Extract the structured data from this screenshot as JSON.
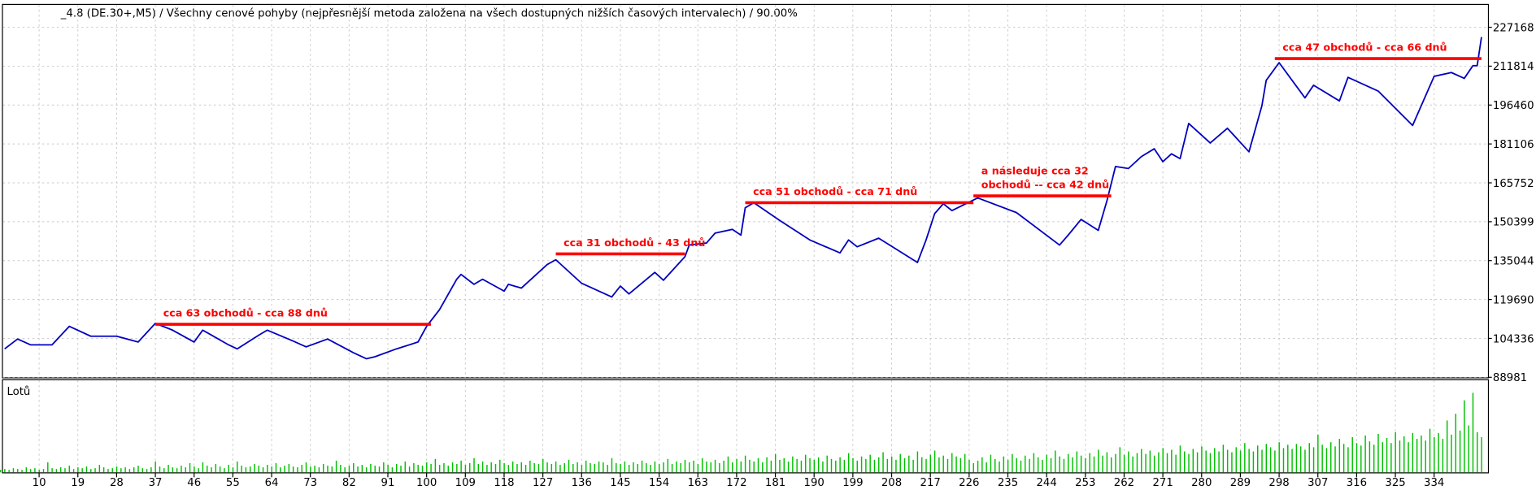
{
  "chart_data": [
    {
      "type": "line",
      "title": "_4.8 (DE.30+,M5) / Všechny cenové pohyby (nejpřesnější metoda založena na všech dostupných nižších časových intervalech) / 90.00%",
      "x": [
        2,
        5,
        8,
        13,
        17,
        22,
        28,
        33,
        37,
        41,
        46,
        48,
        54,
        56,
        61,
        63,
        69,
        72,
        77,
        83,
        86,
        88,
        93,
        98,
        100,
        103,
        107,
        108,
        111,
        113,
        118,
        119,
        122,
        128,
        130,
        136,
        143,
        145,
        147,
        153,
        155,
        160,
        161,
        165,
        167,
        171,
        173,
        174,
        176,
        182,
        189,
        196,
        198,
        200,
        205,
        214,
        216,
        218,
        220,
        222,
        228,
        237,
        247,
        249,
        252,
        256,
        258,
        260,
        263,
        266,
        269,
        271,
        273,
        275,
        277,
        282,
        286,
        291,
        294,
        295,
        298,
        304,
        306,
        312,
        314,
        321,
        329,
        334,
        338,
        341,
        343,
        344,
        345
      ],
      "values": [
        100200,
        104100,
        101800,
        101800,
        109100,
        105200,
        105200,
        102900,
        110300,
        107600,
        102900,
        107600,
        101800,
        100200,
        105600,
        107600,
        103300,
        101000,
        104100,
        98700,
        96300,
        97100,
        100200,
        102900,
        109100,
        115700,
        127700,
        129600,
        125700,
        127700,
        123000,
        125700,
        124200,
        133500,
        135400,
        126100,
        120700,
        125000,
        121900,
        130400,
        127300,
        136600,
        141200,
        142000,
        145900,
        147400,
        145100,
        155900,
        157900,
        150900,
        143200,
        138100,
        143200,
        140500,
        143900,
        134300,
        143200,
        153600,
        157500,
        154800,
        159800,
        154000,
        141200,
        145100,
        151300,
        147000,
        158600,
        172200,
        171400,
        176100,
        179200,
        174100,
        177200,
        175300,
        189200,
        181500,
        187300,
        178000,
        196200,
        206200,
        213200,
        199300,
        204300,
        198100,
        207400,
        202000,
        188400,
        207800,
        209300,
        207000,
        212000,
        212000,
        223300
      ],
      "color": "#0000c0",
      "xlim": [
        1.6,
        346.5
      ],
      "ylim": [
        88981,
        236000
      ],
      "yticks": [
        88981,
        104336,
        119690,
        135044,
        150399,
        165752,
        181106,
        196460,
        211814,
        227168
      ],
      "grid": true,
      "annotation_color": "#ff0000",
      "annotations": [
        {
          "x": [
            37,
            101
          ],
          "value": 109900,
          "label": [
            "cca 63 obchodů - cca 88 dnů"
          ]
        },
        {
          "x": [
            130,
            160
          ],
          "value": 137700,
          "label": [
            "cca 31 obchodů - 43 dnů"
          ]
        },
        {
          "x": [
            174,
            227
          ],
          "value": 157900,
          "label": [
            "cca 51 obchodů - cca 71 dnů"
          ]
        },
        {
          "x": [
            227,
            259
          ],
          "value": 160600,
          "label": [
            "a následuje cca 32",
            "obchodů -- cca 42 dnů"
          ]
        },
        {
          "x": [
            297,
            345
          ],
          "value": 214800,
          "label": [
            "cca 47 obchodů - cca 66 dnů"
          ]
        }
      ]
    },
    {
      "type": "bar",
      "title": "Lotů",
      "x": [
        1,
        2,
        3,
        4,
        5,
        6,
        7,
        8,
        9,
        10,
        11,
        12,
        13,
        14,
        15,
        16,
        17,
        18,
        19,
        20,
        21,
        22,
        23,
        24,
        25,
        26,
        27,
        28,
        29,
        30,
        31,
        32,
        33,
        34,
        35,
        36,
        37,
        38,
        39,
        40,
        41,
        42,
        43,
        44,
        45,
        46,
        47,
        48,
        49,
        50,
        51,
        52,
        53,
        54,
        55,
        56,
        57,
        58,
        59,
        60,
        61,
        62,
        63,
        64,
        65,
        66,
        67,
        68,
        69,
        70,
        71,
        72,
        73,
        74,
        75,
        76,
        77,
        78,
        79,
        80,
        81,
        82,
        83,
        84,
        85,
        86,
        87,
        88,
        89,
        90,
        91,
        92,
        93,
        94,
        95,
        96,
        97,
        98,
        99,
        100,
        101,
        102,
        103,
        104,
        105,
        106,
        107,
        108,
        109,
        110,
        111,
        112,
        113,
        114,
        115,
        116,
        117,
        118,
        119,
        120,
        121,
        122,
        123,
        124,
        125,
        126,
        127,
        128,
        129,
        130,
        131,
        132,
        133,
        134,
        135,
        136,
        137,
        138,
        139,
        140,
        141,
        142,
        143,
        144,
        145,
        146,
        147,
        148,
        149,
        150,
        151,
        152,
        153,
        154,
        155,
        156,
        157,
        158,
        159,
        160,
        161,
        162,
        163,
        164,
        165,
        166,
        167,
        168,
        169,
        170,
        171,
        172,
        173,
        174,
        175,
        176,
        177,
        178,
        179,
        180,
        181,
        182,
        183,
        184,
        185,
        186,
        187,
        188,
        189,
        190,
        191,
        192,
        193,
        194,
        195,
        196,
        197,
        198,
        199,
        200,
        201,
        202,
        203,
        204,
        205,
        206,
        207,
        208,
        209,
        210,
        211,
        212,
        213,
        214,
        215,
        216,
        217,
        218,
        219,
        220,
        221,
        222,
        223,
        224,
        225,
        226,
        227,
        228,
        229,
        230,
        231,
        232,
        233,
        234,
        235,
        236,
        237,
        238,
        239,
        240,
        241,
        242,
        243,
        244,
        245,
        246,
        247,
        248,
        249,
        250,
        251,
        252,
        253,
        254,
        255,
        256,
        257,
        258,
        259,
        260,
        261,
        262,
        263,
        264,
        265,
        266,
        267,
        268,
        269,
        270,
        271,
        272,
        273,
        274,
        275,
        276,
        277,
        278,
        279,
        280,
        281,
        282,
        283,
        284,
        285,
        286,
        287,
        288,
        289,
        290,
        291,
        292,
        293,
        294,
        295,
        296,
        297,
        298,
        299,
        300,
        301,
        302,
        303,
        304,
        305,
        306,
        307,
        308,
        309,
        310,
        311,
        312,
        313,
        314,
        315,
        316,
        317,
        318,
        319,
        320,
        321,
        322,
        323,
        324,
        325,
        326,
        327,
        328,
        329,
        330,
        331,
        332,
        333,
        334,
        335,
        336,
        337,
        338,
        339,
        340,
        341,
        342,
        343,
        344,
        345
      ],
      "values": [
        0.03,
        0.04,
        0.03,
        0.05,
        0.04,
        0.03,
        0.06,
        0.04,
        0.05,
        0.03,
        0.04,
        0.12,
        0.05,
        0.04,
        0.06,
        0.05,
        0.08,
        0.04,
        0.06,
        0.05,
        0.07,
        0.04,
        0.05,
        0.09,
        0.06,
        0.04,
        0.05,
        0.07,
        0.05,
        0.06,
        0.04,
        0.06,
        0.08,
        0.05,
        0.04,
        0.06,
        0.13,
        0.07,
        0.05,
        0.09,
        0.06,
        0.05,
        0.08,
        0.06,
        0.11,
        0.07,
        0.05,
        0.12,
        0.08,
        0.06,
        0.1,
        0.07,
        0.05,
        0.09,
        0.06,
        0.13,
        0.08,
        0.06,
        0.07,
        0.1,
        0.08,
        0.06,
        0.09,
        0.07,
        0.11,
        0.06,
        0.08,
        0.1,
        0.07,
        0.06,
        0.09,
        0.12,
        0.07,
        0.08,
        0.06,
        0.1,
        0.08,
        0.07,
        0.14,
        0.09,
        0.06,
        0.08,
        0.11,
        0.07,
        0.09,
        0.06,
        0.1,
        0.08,
        0.07,
        0.12,
        0.09,
        0.06,
        0.1,
        0.08,
        0.13,
        0.07,
        0.11,
        0.09,
        0.08,
        0.12,
        0.1,
        0.16,
        0.09,
        0.11,
        0.08,
        0.12,
        0.1,
        0.14,
        0.09,
        0.11,
        0.17,
        0.1,
        0.13,
        0.09,
        0.12,
        0.1,
        0.15,
        0.11,
        0.09,
        0.13,
        0.1,
        0.12,
        0.09,
        0.14,
        0.11,
        0.1,
        0.16,
        0.12,
        0.1,
        0.13,
        0.09,
        0.11,
        0.15,
        0.1,
        0.12,
        0.09,
        0.14,
        0.11,
        0.1,
        0.13,
        0.12,
        0.09,
        0.17,
        0.11,
        0.1,
        0.13,
        0.09,
        0.12,
        0.1,
        0.14,
        0.11,
        0.09,
        0.13,
        0.1,
        0.12,
        0.16,
        0.1,
        0.13,
        0.11,
        0.15,
        0.12,
        0.14,
        0.1,
        0.17,
        0.13,
        0.12,
        0.15,
        0.11,
        0.14,
        0.19,
        0.12,
        0.16,
        0.13,
        0.2,
        0.15,
        0.13,
        0.17,
        0.12,
        0.18,
        0.14,
        0.22,
        0.15,
        0.17,
        0.13,
        0.19,
        0.16,
        0.14,
        0.21,
        0.17,
        0.15,
        0.18,
        0.13,
        0.2,
        0.16,
        0.14,
        0.18,
        0.15,
        0.23,
        0.17,
        0.14,
        0.19,
        0.16,
        0.21,
        0.15,
        0.18,
        0.24,
        0.16,
        0.19,
        0.15,
        0.22,
        0.17,
        0.2,
        0.15,
        0.25,
        0.18,
        0.16,
        0.21,
        0.26,
        0.18,
        0.2,
        0.16,
        0.23,
        0.19,
        0.17,
        0.22,
        0.15,
        0.11,
        0.14,
        0.18,
        0.12,
        0.21,
        0.16,
        0.13,
        0.19,
        0.15,
        0.22,
        0.17,
        0.14,
        0.2,
        0.16,
        0.23,
        0.18,
        0.15,
        0.21,
        0.17,
        0.26,
        0.19,
        0.16,
        0.22,
        0.18,
        0.25,
        0.2,
        0.17,
        0.23,
        0.19,
        0.27,
        0.2,
        0.24,
        0.18,
        0.22,
        0.3,
        0.21,
        0.25,
        0.19,
        0.23,
        0.28,
        0.22,
        0.26,
        0.2,
        0.24,
        0.29,
        0.23,
        0.27,
        0.21,
        0.32,
        0.25,
        0.22,
        0.28,
        0.24,
        0.31,
        0.26,
        0.23,
        0.29,
        0.25,
        0.33,
        0.27,
        0.24,
        0.3,
        0.26,
        0.35,
        0.28,
        0.25,
        0.32,
        0.27,
        0.34,
        0.3,
        0.26,
        0.36,
        0.29,
        0.33,
        0.28,
        0.34,
        0.31,
        0.27,
        0.35,
        0.3,
        0.45,
        0.33,
        0.29,
        0.36,
        0.31,
        0.4,
        0.34,
        0.3,
        0.42,
        0.35,
        0.32,
        0.44,
        0.37,
        0.33,
        0.46,
        0.36,
        0.41,
        0.35,
        0.48,
        0.38,
        0.43,
        0.36,
        0.47,
        0.4,
        0.44,
        0.38,
        0.52,
        0.42,
        0.47,
        0.4,
        0.62,
        0.45,
        0.7,
        0.5,
        0.86,
        0.56,
        0.95,
        0.48,
        0.42
      ],
      "color": "#00c000",
      "xlim": [
        1.6,
        346.5
      ],
      "ylim": [
        0,
        1.1
      ],
      "xticks": [
        10,
        19,
        28,
        37,
        46,
        55,
        64,
        73,
        82,
        91,
        100,
        109,
        118,
        127,
        136,
        145,
        154,
        163,
        172,
        181,
        190,
        199,
        208,
        217,
        226,
        235,
        244,
        253,
        262,
        271,
        280,
        289,
        298,
        307,
        316,
        325,
        334
      ]
    }
  ]
}
